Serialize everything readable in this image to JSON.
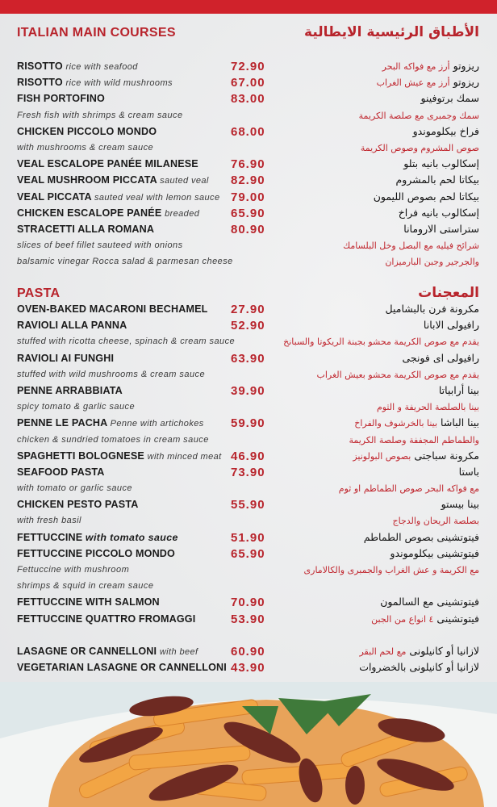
{
  "colors": {
    "accent": "#b8242c",
    "band": "#d0222b",
    "background": "#eaebec"
  },
  "main_courses": {
    "title": "ITALIAN MAIN COURSES",
    "title_ar": "الأطباق الرئيسية الايطالية",
    "rows": [
      {
        "en": "RISOTTO",
        "en_desc": "rice with seafood",
        "price": "72.90",
        "ar": "ريزوتو",
        "ar_desc": "أرز مع فواكه البحر"
      },
      {
        "en": "RISOTTO",
        "en_desc": "rice with wild mushrooms",
        "price": "67.00",
        "ar": "ريزوتو",
        "ar_desc": "أرز مع عيش الغراب"
      },
      {
        "en": "FISH PORTOFINO",
        "price": "83.00",
        "ar": "سمك برتوفينو"
      },
      {
        "en_desc": "Fresh fish with shrimps & cream sauce",
        "ar_desc": "سمك وجمبرى مع صلصة الكريمة"
      },
      {
        "en": "CHICKEN PICCOLO MONDO",
        "price": "68.00",
        "ar": "فراخ بيكلوموندو"
      },
      {
        "en_desc": "with mushrooms & cream sauce",
        "ar_desc": "صوص المشروم وصوص الكريمة"
      },
      {
        "en": "VEAL ESCALOPE PANÉE MILANESE",
        "price": "76.90",
        "ar": "إسكالوب بانيه بتلو"
      },
      {
        "en": "VEAL MUSHROOM PICCATA",
        "en_desc": "sauted veal",
        "price": "82.90",
        "ar": "بيكاتا لحم بالمشروم"
      },
      {
        "en": "VEAL PICCATA",
        "en_desc": "sauted veal with lemon sauce",
        "price": "79.00",
        "ar": "بيكاتا لحم بصوص الليمون"
      },
      {
        "en": "CHICKEN ESCALOPE PANÉE",
        "en_desc": "breaded",
        "price": "65.90",
        "ar": "إسكالوب بانيه فراخ"
      },
      {
        "en": "STRACETTI ALLA ROMANA",
        "price": "80.90",
        "ar": "ستراستى الارومانا"
      },
      {
        "en_desc": "slices of beef fillet sauteed with onions",
        "ar_desc": "شرائح فيليه مع البصل وخل البلسامك"
      },
      {
        "en_desc": "balsamic vinegar Rocca salad & parmesan cheese",
        "ar_desc": "والجرجير وجبن البارميزان"
      }
    ]
  },
  "pasta": {
    "title": "PASTA",
    "title_ar": "المعجنات",
    "rows": [
      {
        "en": "OVEN-BAKED MACARONI BECHAMEL",
        "price": "27.90",
        "ar": "مكرونة فرن بالبشاميل"
      },
      {
        "en": "RAVIOLI ALLA PANNA",
        "price": "52.90",
        "ar": "رافيولى الابانا"
      },
      {
        "en_desc": "stuffed with ricotta cheese, spinach & cream sauce",
        "ar_desc": "يقدم مع صوص الكريمة محشو بجبنة الريكوتا والسبانخ"
      },
      {
        "en": "RAVIOLI AI FUNGHI",
        "price": "63.90",
        "ar": "رافيولى اى فونجى"
      },
      {
        "en_desc": "stuffed with wild mushrooms & cream sauce",
        "ar_desc": "يقدم مع صوص الكريمة محشو بعيش الغراب"
      },
      {
        "en": "PENNE ARRABBIATA",
        "price": "39.90",
        "ar": "بينا أرابياتا"
      },
      {
        "en_desc": "spicy tomato & garlic sauce",
        "ar_desc": "بينا بالصلصة الحريفة و الثوم"
      },
      {
        "en": "PENNE LE PACHA",
        "en_desc": "Penne with artichokes",
        "price": "59.90",
        "ar": "بينا الباشا",
        "ar_desc": "بينا بالخرشوف والفراخ"
      },
      {
        "en_desc": "chicken & sundried tomatoes in cream sauce",
        "ar_desc": "والطماطم المجففة وصلصة الكريمة"
      },
      {
        "en": "SPAGHETTI BOLOGNESE",
        "en_desc": "with minced meat",
        "price": "46.90",
        "ar": "مكرونة سباجتى",
        "ar_desc": "بصوص البولونيز"
      },
      {
        "en": "SEAFOOD PASTA",
        "price": "73.90",
        "ar": "باستا"
      },
      {
        "en_desc": "with tomato or garlic sauce",
        "ar_desc": "مع فواكه البحر  صوص الطماطم او ثوم"
      },
      {
        "en": "CHICKEN PESTO PASTA",
        "price": "55.90",
        "ar": "بينا بيستو"
      },
      {
        "en_desc": "with fresh basil",
        "ar_desc": "بصلصة الريحان والدجاج"
      },
      {
        "en": "FETTUCCINE",
        "en_desc_bold": "with tomato sauce",
        "price": "51.90",
        "ar": "فيتوتشينى بصوص الطماطم"
      },
      {
        "en": "FETTUCCINE PICCOLO MONDO",
        "price": "65.90",
        "ar": "فيتوتشينى بيكلوموندو"
      },
      {
        "en_desc": "Fettuccine with mushroom",
        "ar_desc": "مع الكريمة و عش الغراب والجمبرى والكالامارى"
      },
      {
        "en_desc": " shrimps & squid in cream sauce"
      },
      {
        "en": "FETTUCCINE WITH SALMON",
        "price": "70.90",
        "ar": "فيتوتشينى مع السالمون"
      },
      {
        "en": "FETTUCCINE QUATTRO FROMAGGI",
        "price": "53.90",
        "ar": "فيتوتشينى",
        "ar_desc": "٤ انواع من الجبن"
      },
      {},
      {
        "en": "LASAGNE OR CANNELLONI",
        "en_desc": "with beef",
        "price": "60.90",
        "ar": "لازانيا أو كانيلونى",
        "ar_desc": "مع لحم البقر"
      },
      {
        "en": "VEGETARIAN LASAGNE OR CANNELLONI",
        "price": "43.90",
        "ar": "لازانيا أو كانيلونى بالخضروات"
      }
    ]
  }
}
